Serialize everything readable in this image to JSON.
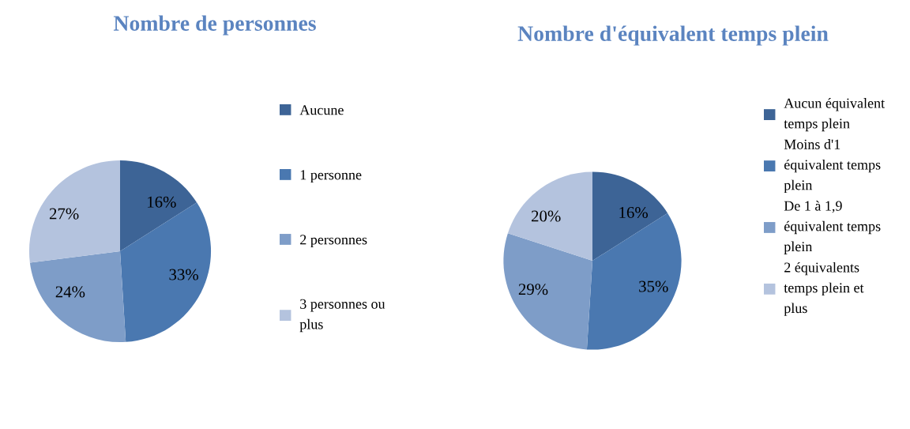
{
  "chart_data": [
    {
      "type": "pie",
      "title": "Nombre de personnes",
      "categories": [
        "Aucune",
        "1 personne",
        "2 personnes",
        "3 personnes ou\nplus"
      ],
      "values": [
        16,
        33,
        24,
        27
      ],
      "value_labels": [
        "16%",
        "33%",
        "24%",
        "27%"
      ],
      "colors": [
        "#3d6496",
        "#4a78b0",
        "#7e9dc8",
        "#b4c3de"
      ],
      "legend": "right"
    },
    {
      "type": "pie",
      "title": "Nombre d'équivalent temps plein",
      "categories": [
        "Aucun équivalent\ntemps plein",
        "Moins d'1\néquivalent temps\nplein",
        "De 1 à 1,9\néquivalent temps\nplein",
        "2 équivalents\ntemps plein et\nplus"
      ],
      "values": [
        16,
        35,
        29,
        20
      ],
      "value_labels": [
        "16%",
        "35%",
        "29%",
        "20%"
      ],
      "colors": [
        "#3d6496",
        "#4a78b0",
        "#7e9dc8",
        "#b4c3de"
      ],
      "legend": "right"
    }
  ]
}
